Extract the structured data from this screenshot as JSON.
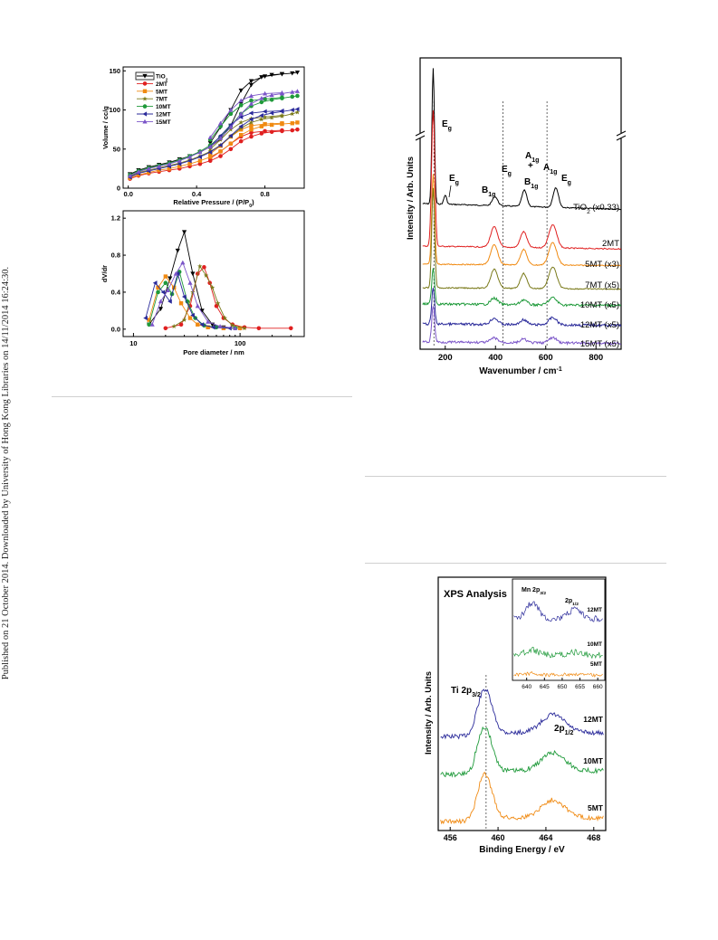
{
  "sidebar": {
    "text": "Published on 21 October 2014. Downloaded by University of Hong Kong Libraries on 14/11/2014 16:24:30."
  },
  "colors": {
    "TiO2": "#000000",
    "2MT": "#e02020",
    "5MT": "#f08a12",
    "7MT": "#7a7a1a",
    "10MT": "#1f9a3a",
    "12MT": "#2a2a9a",
    "15MT": "#7b55c8"
  },
  "chart_data": [
    {
      "type": "line",
      "name": "isotherm",
      "xlabel": "Relative Pressure / (P/P",
      "xlabel_sub": "0",
      "xlabel_tail": ")",
      "ylabel": "Volume / cc/g",
      "xlim": [
        -0.03,
        1.03
      ],
      "ylim": [
        0,
        155
      ],
      "xticks": [
        0.0,
        0.4,
        0.8
      ],
      "xtick_labels": [
        "0.0",
        "0.4",
        "0.8"
      ],
      "yticks": [
        0,
        50,
        100,
        150
      ],
      "ytick_labels": [
        "0",
        "50",
        "100",
        "150"
      ],
      "legend_position": "top-left",
      "x": [
        0.01,
        0.06,
        0.12,
        0.18,
        0.24,
        0.3,
        0.36,
        0.42,
        0.48,
        0.54,
        0.6,
        0.66,
        0.72,
        0.78,
        0.84,
        0.9,
        0.96,
        0.99
      ],
      "series": [
        {
          "name": "TiO",
          "name_sub": "2",
          "key": "TiO2",
          "marker": "tri-down",
          "values": [
            18,
            23,
            27,
            30,
            33,
            37,
            41,
            46,
            53,
            63,
            80,
            108,
            132,
            142,
            145,
            146,
            147,
            148
          ],
          "desorption_x": [
            0.9,
            0.8,
            0.72,
            0.66,
            0.6,
            0.54,
            0.48
          ],
          "desorption": [
            146,
            143,
            137,
            125,
            100,
            78,
            58
          ]
        },
        {
          "name": "2MT",
          "key": "2MT",
          "marker": "circle",
          "values": [
            12,
            16,
            19,
            21,
            23,
            25,
            28,
            31,
            35,
            41,
            50,
            60,
            66,
            70,
            72,
            73,
            74,
            75
          ],
          "desorption_x": [
            0.9,
            0.8,
            0.72,
            0.66,
            0.6,
            0.54,
            0.48
          ],
          "desorption": [
            74,
            73,
            71,
            66,
            57,
            47,
            38
          ]
        },
        {
          "name": "5MT",
          "key": "5MT",
          "marker": "square",
          "values": [
            13,
            17,
            20,
            23,
            25,
            28,
            31,
            35,
            40,
            47,
            57,
            68,
            75,
            79,
            81,
            82,
            83,
            84
          ],
          "desorption_x": [
            0.9,
            0.8,
            0.72,
            0.66,
            0.6,
            0.54,
            0.48
          ],
          "desorption": [
            83,
            82,
            80,
            75,
            66,
            54,
            44
          ]
        },
        {
          "name": "7MT",
          "key": "7MT",
          "marker": "star",
          "values": [
            15,
            20,
            23,
            26,
            29,
            32,
            36,
            41,
            47,
            55,
            66,
            77,
            84,
            88,
            90,
            92,
            95,
            97
          ],
          "desorption_x": [
            0.9,
            0.8,
            0.72,
            0.66,
            0.6,
            0.54,
            0.48
          ],
          "desorption": [
            93,
            91,
            89,
            84,
            75,
            62,
            50
          ]
        },
        {
          "name": "10MT",
          "key": "10MT",
          "marker": "circle",
          "values": [
            17,
            22,
            26,
            29,
            32,
            36,
            41,
            47,
            55,
            66,
            80,
            95,
            105,
            110,
            113,
            115,
            117,
            118
          ],
          "desorption_x": [
            0.9,
            0.8,
            0.72,
            0.66,
            0.6,
            0.54,
            0.48
          ],
          "desorption": [
            116,
            114,
            112,
            106,
            95,
            79,
            62
          ]
        },
        {
          "name": "12MT",
          "key": "12MT",
          "marker": "tri-left",
          "values": [
            14,
            19,
            22,
            25,
            28,
            31,
            35,
            40,
            46,
            55,
            67,
            79,
            88,
            93,
            96,
            98,
            100,
            101
          ],
          "desorption_x": [
            0.9,
            0.8,
            0.72,
            0.66,
            0.6,
            0.54,
            0.48
          ],
          "desorption": [
            99,
            98,
            96,
            91,
            81,
            67,
            53
          ]
        },
        {
          "name": "15MT",
          "key": "15MT",
          "marker": "tri-up",
          "values": [
            16,
            21,
            25,
            28,
            31,
            35,
            40,
            46,
            53,
            64,
            78,
            95,
            108,
            115,
            119,
            121,
            123,
            124
          ],
          "desorption_x": [
            0.9,
            0.8,
            0.72,
            0.66,
            0.6,
            0.54,
            0.48
          ],
          "desorption": [
            122,
            121,
            118,
            112,
            100,
            83,
            65
          ]
        }
      ]
    },
    {
      "type": "line",
      "name": "pore-distribution",
      "xlabel": "Pore diameter / nm",
      "ylabel": "dV/dr",
      "xscale": "log",
      "xlim": [
        8,
        400
      ],
      "ylim": [
        -0.08,
        1.28
      ],
      "xticks": [
        10,
        100
      ],
      "xtick_labels": [
        "10",
        "100"
      ],
      "yticks": [
        0.0,
        0.4,
        0.8,
        1.2
      ],
      "ytick_labels": [
        "0.0",
        "0.4",
        "0.8",
        "1.2"
      ],
      "series": [
        {
          "key": "TiO2",
          "marker": "tri-down",
          "x": [
            14,
            18,
            22,
            26,
            30,
            36,
            44,
            55,
            70,
            100
          ],
          "values": [
            0.05,
            0.22,
            0.55,
            0.85,
            1.05,
            0.6,
            0.2,
            0.05,
            0.02,
            0.01
          ]
        },
        {
          "key": "2MT",
          "marker": "circle",
          "x": [
            20,
            28,
            34,
            40,
            46,
            52,
            60,
            70,
            85,
            110,
            150,
            300
          ],
          "values": [
            0.01,
            0.05,
            0.25,
            0.6,
            0.67,
            0.5,
            0.25,
            0.12,
            0.05,
            0.02,
            0.01,
            0.01
          ]
        },
        {
          "key": "5MT",
          "marker": "square",
          "x": [
            14,
            17,
            20,
            24,
            28,
            34,
            40,
            50,
            70,
            100
          ],
          "values": [
            0.1,
            0.45,
            0.57,
            0.45,
            0.28,
            0.12,
            0.05,
            0.02,
            0.01,
            0.01
          ]
        },
        {
          "key": "7MT",
          "marker": "star",
          "x": [
            24,
            30,
            36,
            42,
            48,
            55,
            62,
            72,
            85,
            110
          ],
          "values": [
            0.03,
            0.1,
            0.4,
            0.68,
            0.58,
            0.45,
            0.28,
            0.12,
            0.04,
            0.01
          ]
        },
        {
          "key": "10MT",
          "marker": "circle",
          "x": [
            14,
            17,
            20,
            23,
            27,
            32,
            38,
            46,
            60,
            90
          ],
          "values": [
            0.05,
            0.4,
            0.5,
            0.38,
            0.62,
            0.3,
            0.12,
            0.04,
            0.02,
            0.01
          ]
        },
        {
          "key": "12MT",
          "marker": "tri-left",
          "x": [
            13,
            16,
            19,
            22,
            26,
            30,
            36,
            44,
            56,
            80
          ],
          "values": [
            0.12,
            0.5,
            0.4,
            0.3,
            0.6,
            0.35,
            0.15,
            0.05,
            0.02,
            0.01
          ]
        },
        {
          "key": "15MT",
          "marker": "tri-up",
          "x": [
            15,
            18,
            21,
            25,
            29,
            34,
            40,
            50,
            65,
            90
          ],
          "values": [
            0.05,
            0.3,
            0.42,
            0.6,
            0.72,
            0.5,
            0.25,
            0.08,
            0.03,
            0.01
          ]
        }
      ]
    },
    {
      "type": "line",
      "name": "raman",
      "xlabel": "Wavenumber / cm",
      "xlabel_sup": "-1",
      "ylabel": "Intensity / Arb. Units",
      "xlim": [
        100,
        900
      ],
      "xticks": [
        200,
        400,
        600,
        800
      ],
      "xtick_labels": [
        "200",
        "400",
        "600",
        "800"
      ],
      "reference_lines": [
        155,
        430,
        605
      ],
      "peak_labels": [
        {
          "main": "E",
          "sub": "g",
          "x": 152
        },
        {
          "main": "E",
          "sub": "g",
          "x": 200
        },
        {
          "main": "B",
          "sub": "1g",
          "x": 395
        },
        {
          "main": "E",
          "sub": "g",
          "x": 430
        },
        {
          "main": "A",
          "sub": "1g",
          "x": 508
        },
        {
          "main": "+",
          "sub": "",
          "x": 508
        },
        {
          "main": "B",
          "sub": "1g",
          "x": 516
        },
        {
          "main": "A",
          "sub": "1g",
          "x": 618
        },
        {
          "main": "E",
          "sub": "g",
          "x": 640
        }
      ],
      "series": [
        {
          "key": "TiO2",
          "name": "TiO",
          "name_sub": "2",
          "name_tail": " (x0.33)"
        },
        {
          "key": "2MT",
          "name": "2MT"
        },
        {
          "key": "5MT",
          "name": "5MT (x3)"
        },
        {
          "key": "7MT",
          "name": "7MT (x5)"
        },
        {
          "key": "10MT",
          "name": "10MT (x5)"
        },
        {
          "key": "12MT",
          "name": "12MT (x5)"
        },
        {
          "key": "15MT",
          "name": "15MT (x5)"
        }
      ]
    },
    {
      "type": "line",
      "name": "xps",
      "title": "XPS Analysis",
      "xlabel": "Binding Energy / eV",
      "ylabel": "Intensity / Arb. Units",
      "xlim": [
        455,
        469
      ],
      "xticks": [
        456,
        460,
        464,
        468
      ],
      "xtick_labels": [
        "456",
        "460",
        "464",
        "468"
      ],
      "reference_line": 459,
      "peak_labels": [
        {
          "main": "Ti 2p",
          "sub": "3/2"
        },
        {
          "main": "2p",
          "sub": "1/2"
        }
      ],
      "series": [
        {
          "key": "12MT",
          "name": "12MT"
        },
        {
          "key": "10MT",
          "name": "10MT"
        },
        {
          "key": "5MT",
          "name": "5MT"
        }
      ],
      "inset": {
        "xlim": [
          636,
          662
        ],
        "xticks": [
          640,
          645,
          650,
          655,
          660
        ],
        "xtick_labels": [
          "640",
          "645",
          "650",
          "655",
          "660"
        ],
        "peak_labels": [
          {
            "main": "Mn 2p",
            "sub": "3/2"
          },
          {
            "main": "2p",
            "sub": "1/2"
          }
        ],
        "series": [
          {
            "key": "12MT",
            "name": "12MT"
          },
          {
            "key": "10MT",
            "name": "10MT"
          },
          {
            "key": "5MT",
            "name": "5MT"
          }
        ]
      }
    }
  ]
}
